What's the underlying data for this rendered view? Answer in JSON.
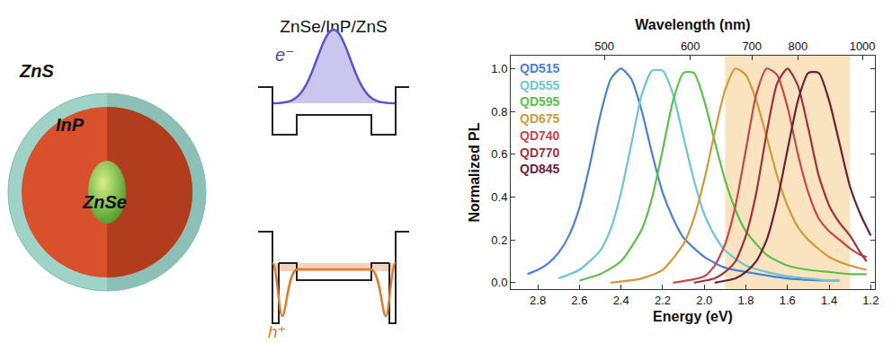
{
  "diagram": {
    "sphere_labels": {
      "shell": "ZnS",
      "middle": "InP",
      "core": "ZnSe"
    },
    "band_title": "ZnSe/InP/ZnS",
    "electron": "e⁻",
    "hole": "h⁺"
  },
  "chart_data": {
    "type": "line",
    "xlabel": "Energy (eV)",
    "ylabel": "Normalized PL",
    "x2label": "Wavelength (nm)",
    "xlim": [
      2.93,
      1.18
    ],
    "ylim": [
      -0.03,
      1.06
    ],
    "xticks": [
      2.8,
      2.6,
      2.4,
      2.2,
      {
        "value": 2,
        "label": "2.0"
      },
      1.8,
      1.6,
      1.4,
      1.2
    ],
    "x2ticks": [
      {
        "value": 2.48,
        "label": "500"
      },
      {
        "value": 2.067,
        "label": "600"
      },
      {
        "value": 1.771,
        "label": "700"
      },
      {
        "value": 1.55,
        "label": "800"
      },
      {
        "value": 1.24,
        "label": "1000"
      }
    ],
    "yticks": [
      {
        "value": 0,
        "label": "0.0"
      },
      0.2,
      0.4,
      0.6,
      0.8,
      {
        "value": 1,
        "label": "1.0"
      }
    ],
    "grid": false,
    "legend": "upper left",
    "shaded_range": [
      1.9,
      1.3
    ],
    "series": [
      {
        "name": "QD515",
        "color": "#4a7fd6",
        "x": [
          2.85,
          2.8,
          2.75,
          2.7,
          2.65,
          2.6,
          2.55,
          2.5,
          2.45,
          2.4,
          2.35,
          2.3,
          2.25,
          2.2,
          2.15,
          2.1,
          2.0,
          1.9,
          1.8,
          1.6,
          1.4,
          1.35
        ],
        "values": [
          0.04,
          0.06,
          0.09,
          0.14,
          0.22,
          0.35,
          0.55,
          0.78,
          0.95,
          1.0,
          0.95,
          0.8,
          0.6,
          0.42,
          0.3,
          0.21,
          0.12,
          0.07,
          0.05,
          0.02,
          0.01,
          0.01
        ]
      },
      {
        "name": "QD555",
        "color": "#6cc5d2",
        "x": [
          2.7,
          2.6,
          2.5,
          2.45,
          2.4,
          2.35,
          2.3,
          2.25,
          2.2,
          2.15,
          2.1,
          2.05,
          2.0,
          1.95,
          1.9,
          1.8,
          1.7,
          1.6,
          1.5,
          1.4,
          1.35
        ],
        "values": [
          0.02,
          0.06,
          0.15,
          0.25,
          0.42,
          0.65,
          0.88,
          0.99,
          0.99,
          0.88,
          0.68,
          0.48,
          0.32,
          0.22,
          0.15,
          0.08,
          0.05,
          0.03,
          0.02,
          0.01,
          0.01
        ]
      },
      {
        "name": "QD595",
        "color": "#5cbf4a",
        "x": [
          2.6,
          2.5,
          2.4,
          2.3,
          2.25,
          2.2,
          2.15,
          2.1,
          2.05,
          2.0,
          1.95,
          1.9,
          1.85,
          1.8,
          1.7,
          1.6,
          1.5,
          1.4,
          1.3,
          1.22
        ],
        "values": [
          0.01,
          0.04,
          0.1,
          0.25,
          0.4,
          0.62,
          0.85,
          0.98,
          0.98,
          0.85,
          0.66,
          0.48,
          0.34,
          0.24,
          0.13,
          0.08,
          0.06,
          0.05,
          0.04,
          0.04
        ]
      },
      {
        "name": "QD675",
        "color": "#d0993a",
        "x": [
          2.45,
          2.3,
          2.2,
          2.1,
          2.05,
          2.0,
          1.95,
          1.9,
          1.85,
          1.8,
          1.75,
          1.7,
          1.65,
          1.6,
          1.55,
          1.5,
          1.4,
          1.3,
          1.22
        ],
        "values": [
          0.0,
          0.02,
          0.06,
          0.18,
          0.3,
          0.48,
          0.7,
          0.9,
          1.0,
          0.97,
          0.85,
          0.68,
          0.5,
          0.36,
          0.26,
          0.2,
          0.12,
          0.08,
          0.06
        ]
      },
      {
        "name": "QD740",
        "color": "#c8464a",
        "x": [
          2.15,
          2.0,
          1.95,
          1.9,
          1.85,
          1.8,
          1.75,
          1.7,
          1.65,
          1.6,
          1.55,
          1.5,
          1.45,
          1.4,
          1.35,
          1.3,
          1.25,
          1.22
        ],
        "values": [
          0.0,
          0.03,
          0.08,
          0.18,
          0.36,
          0.62,
          0.88,
          1.0,
          0.97,
          0.82,
          0.6,
          0.42,
          0.3,
          0.24,
          0.2,
          0.16,
          0.13,
          0.12
        ]
      },
      {
        "name": "QD770",
        "color": "#a2303a",
        "x": [
          2.05,
          1.95,
          1.9,
          1.85,
          1.8,
          1.75,
          1.7,
          1.65,
          1.6,
          1.55,
          1.5,
          1.45,
          1.4,
          1.35,
          1.3,
          1.25,
          1.22
        ],
        "values": [
          0.0,
          0.02,
          0.05,
          0.1,
          0.22,
          0.42,
          0.7,
          0.93,
          1.0,
          0.92,
          0.72,
          0.5,
          0.36,
          0.28,
          0.22,
          0.14,
          0.1
        ]
      },
      {
        "name": "QD845",
        "color": "#6b2035",
        "x": [
          1.95,
          1.85,
          1.8,
          1.75,
          1.7,
          1.65,
          1.6,
          1.55,
          1.5,
          1.45,
          1.4,
          1.35,
          1.3,
          1.25,
          1.2
        ],
        "values": [
          0.0,
          0.02,
          0.05,
          0.1,
          0.2,
          0.38,
          0.62,
          0.85,
          0.98,
          0.98,
          0.85,
          0.65,
          0.45,
          0.32,
          0.22
        ]
      }
    ]
  }
}
